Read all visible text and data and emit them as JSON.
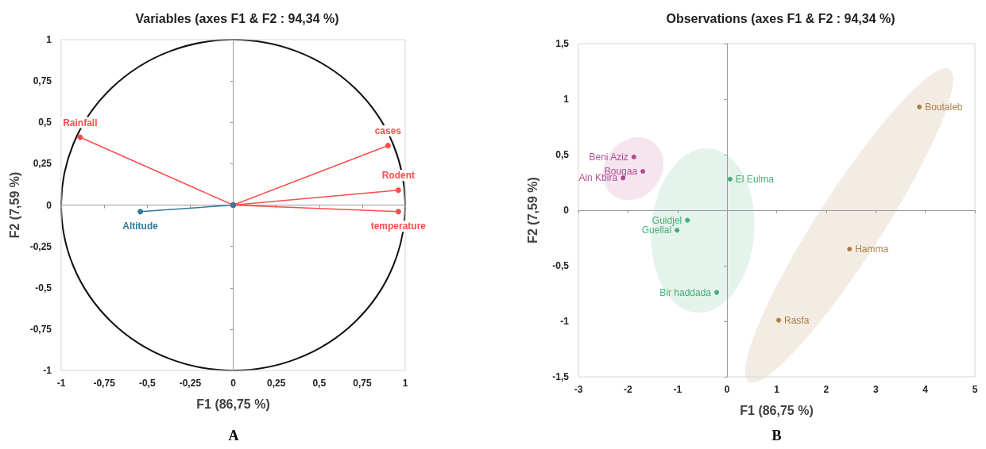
{
  "chart_data": [
    {
      "type": "line",
      "title": "Variables (axes F1 & F2 : 94,34 %)",
      "xlabel": "F1 (86,75 %)",
      "ylabel": "F2 (7,59 %)",
      "xlim": [
        -1,
        1
      ],
      "ylim": [
        -1,
        1
      ],
      "xticks": [
        -1,
        {
          "value": -0.75,
          "label": "-0,75"
        },
        {
          "value": -0.5,
          "label": "-0,5"
        },
        {
          "value": -0.25,
          "label": "-0,25"
        },
        0,
        {
          "value": 0.25,
          "label": "0,25"
        },
        {
          "value": 0.5,
          "label": "0,5"
        },
        {
          "value": 0.75,
          "label": "0,75"
        },
        1
      ],
      "yticks": [
        -1,
        {
          "value": -0.75,
          "label": "-0,75"
        },
        {
          "value": -0.5,
          "label": "-0,5"
        },
        {
          "value": -0.25,
          "label": "-0,25"
        },
        0,
        {
          "value": 0.25,
          "label": "0,25"
        },
        {
          "value": 0.5,
          "label": "0,5"
        },
        {
          "value": 0.75,
          "label": "0,75"
        },
        1
      ],
      "marker": "circle",
      "line_style": "solid",
      "annotations": [
        "A"
      ],
      "series": [
        {
          "name": "Rainfall",
          "color": "#ff4b4b",
          "x": [
            0,
            -0.89
          ],
          "values": [
            0,
            0.41
          ]
        },
        {
          "name": "cases",
          "color": "#ff4b4b",
          "x": [
            0,
            0.9
          ],
          "values": [
            0,
            0.36
          ]
        },
        {
          "name": "Rodent",
          "color": "#ff4b4b",
          "x": [
            0,
            0.96
          ],
          "values": [
            0,
            0.09
          ]
        },
        {
          "name": "temperature",
          "color": "#ff4b4b",
          "x": [
            0,
            0.96
          ],
          "values": [
            0,
            -0.04
          ]
        },
        {
          "name": "Altitude",
          "color": "#2e7b9e",
          "x": [
            0,
            -0.54
          ],
          "values": [
            0,
            -0.04
          ]
        }
      ]
    },
    {
      "type": "scatter",
      "title": "Observations (axes F1 & F2 : 94,34 %)",
      "xlabel": "F1 (86,75 %)",
      "ylabel": "F2 (7,59 %)",
      "xlim": [
        -3,
        5
      ],
      "ylim": [
        -1.5,
        1.5
      ],
      "xticks": [
        -3,
        -2,
        -1,
        0,
        1,
        2,
        3,
        4,
        5
      ],
      "yticks": [
        {
          "value": -1.5,
          "label": "-1,5"
        },
        -1,
        {
          "value": -0.5,
          "label": "-0,5"
        },
        0,
        {
          "value": 0.5,
          "label": "0,5"
        },
        1,
        {
          "value": 1.5,
          "label": "1,5"
        }
      ],
      "marker": "circle",
      "annotations": [
        "B"
      ],
      "series": [
        {
          "color": "#a3237a",
          "x": [
            -1.88,
            -1.7,
            -2.1
          ],
          "values": [
            0.48,
            0.35,
            0.29
          ],
          "value_labels": [
            "Beni Aziz",
            "Bougaa",
            "Ain Kbira"
          ]
        },
        {
          "color": "#1b9e55",
          "x": [
            0.06,
            -0.8,
            -1.01,
            -0.21
          ],
          "values": [
            0.28,
            -0.09,
            -0.18,
            -0.74
          ],
          "value_labels": [
            "El Eulma",
            "Guidjel",
            "Guellal",
            "Bir haddada"
          ]
        },
        {
          "color": "#99621c",
          "x": [
            3.88,
            2.47,
            1.04
          ],
          "values": [
            0.93,
            -0.35,
            -0.99
          ],
          "value_labels": [
            "Boutaleb",
            "Hamma",
            "Rasfa"
          ]
        }
      ]
    }
  ]
}
